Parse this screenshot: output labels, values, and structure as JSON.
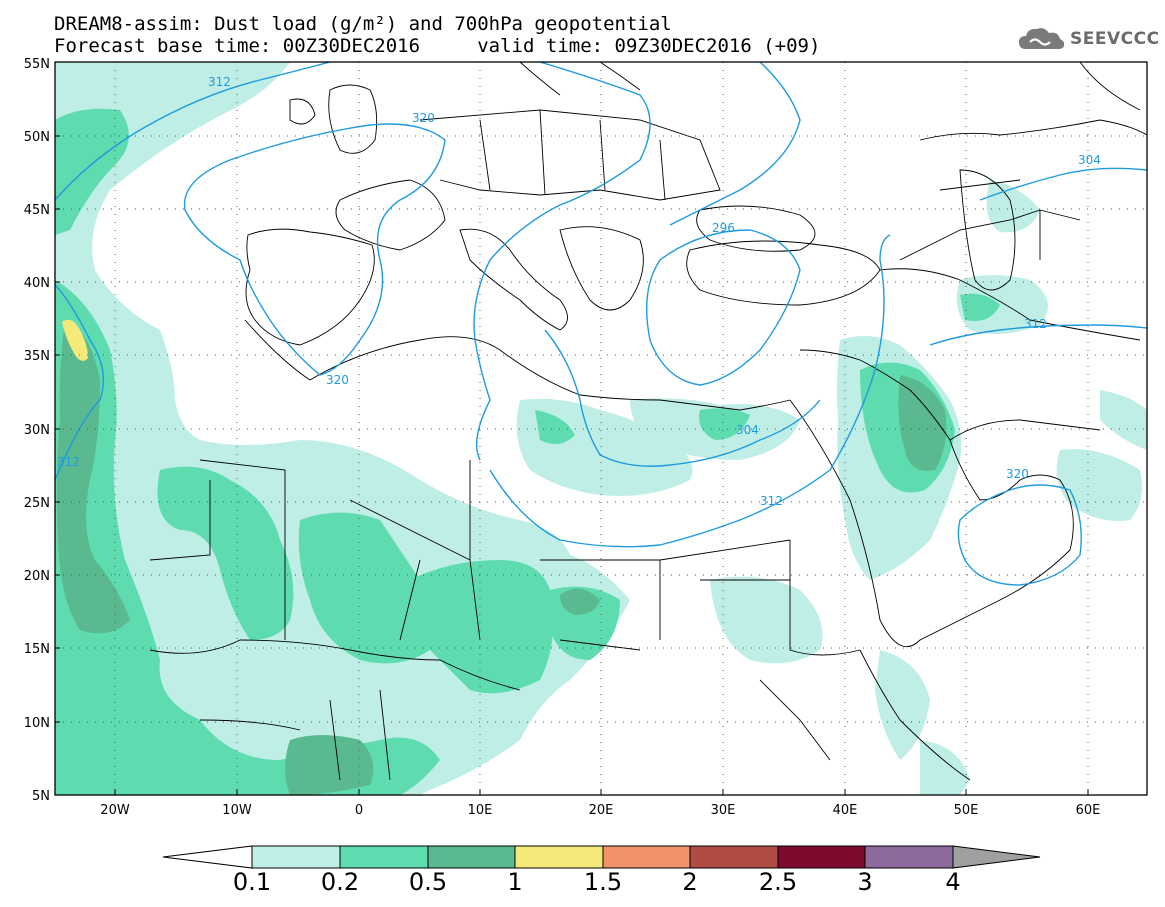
{
  "header": {
    "title_line1": "DREAM8-assim: Dust load (g/m²) and 700hPa geopotential",
    "title_line2": "Forecast base time: 00Z30DEC2016     valid time: 09Z30DEC2016 (+09)"
  },
  "logo": {
    "text": "SEEVCCC",
    "icon": "cloud-icon"
  },
  "map": {
    "lat_labels": [
      "55N",
      "50N",
      "45N",
      "40N",
      "35N",
      "30N",
      "25N",
      "20N",
      "15N",
      "10N",
      "5N"
    ],
    "lon_labels": [
      "20W",
      "10W",
      "0",
      "10E",
      "20E",
      "30E",
      "40E",
      "50E",
      "60E"
    ],
    "contour_labels": [
      "312",
      "320",
      "320",
      "296",
      "304",
      "312",
      "320",
      "304",
      "312",
      "312"
    ]
  },
  "colorbar": {
    "labels": [
      "0.1",
      "0.2",
      "0.5",
      "1",
      "1.5",
      "2",
      "2.5",
      "3",
      "4"
    ],
    "colors": [
      "#ffffff",
      "#bfeee6",
      "#5edcaf",
      "#5bb98f",
      "#f5e97a",
      "#f0926a",
      "#b04c43",
      "#7e0a2e",
      "#8c6a9e",
      "#a0a0a0"
    ]
  },
  "legend_colors": {
    "dust_01": "#bfeee6",
    "dust_02": "#5edcaf",
    "dust_05": "#5bb98f",
    "dust_1": "#f5e97a",
    "contour": "#1f9bde",
    "border": "#000000"
  }
}
